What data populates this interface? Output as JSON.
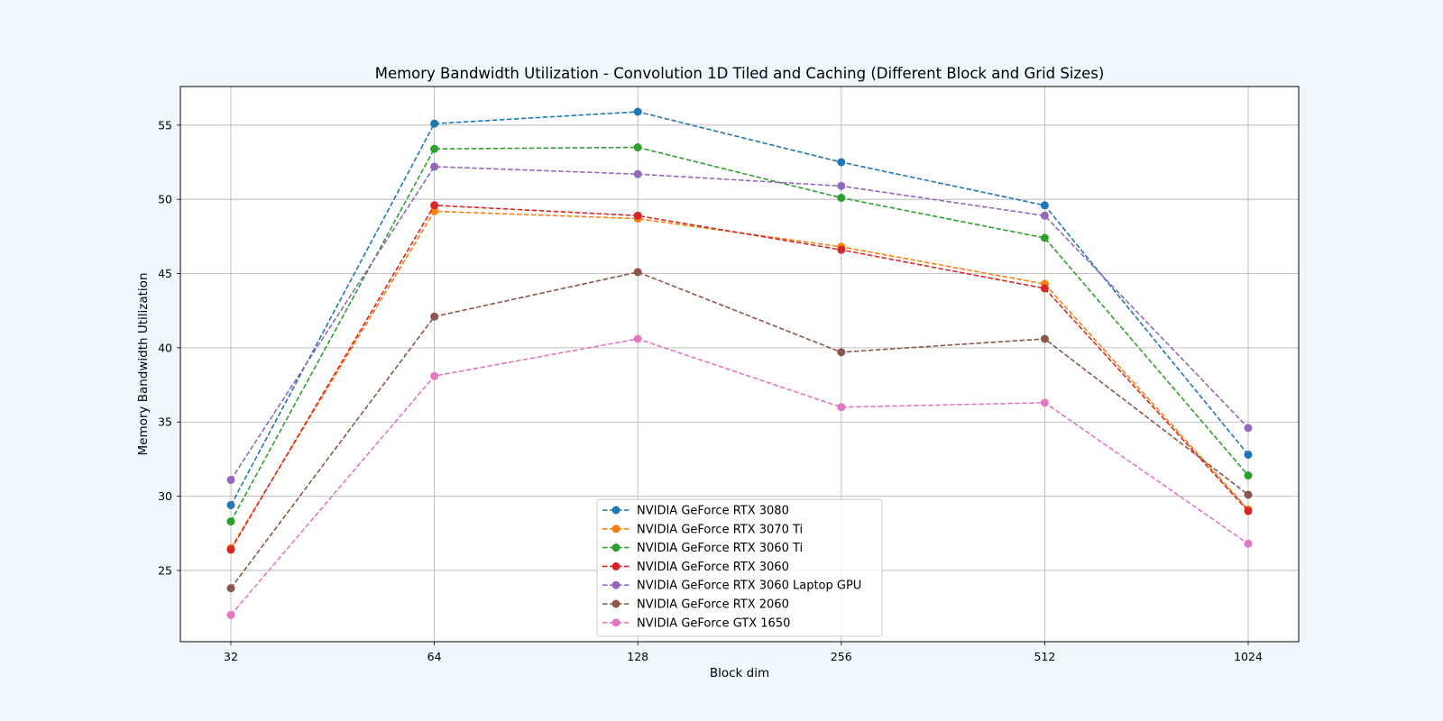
{
  "chart_data": {
    "type": "line",
    "title": "Memory Bandwidth Utilization - Convolution 1D Tiled and Caching (Different Block and Grid Sizes)",
    "xlabel": "Block dim",
    "ylabel": "Memory Bandwidth Utilization",
    "categories": [
      "32",
      "64",
      "128",
      "256",
      "512",
      "1024"
    ],
    "yticks": [
      "25",
      "30",
      "35",
      "40",
      "45",
      "50",
      "55"
    ],
    "ylim": [
      20.2,
      57.6
    ],
    "grid": true,
    "legend_position": "lower-center",
    "line_style": "dashed",
    "marker": "circle",
    "series": [
      {
        "name": "NVIDIA GeForce RTX 3080",
        "color": "#1f77b4",
        "values": [
          29.4,
          55.1,
          55.9,
          52.5,
          49.6,
          32.8
        ]
      },
      {
        "name": "NVIDIA GeForce RTX 3070 Ti",
        "color": "#ff7f0e",
        "values": [
          26.5,
          49.2,
          48.7,
          46.8,
          44.3,
          29.1
        ]
      },
      {
        "name": "NVIDIA GeForce RTX 3060 Ti",
        "color": "#2ca02c",
        "values": [
          28.3,
          53.4,
          53.5,
          50.1,
          47.4,
          31.4
        ]
      },
      {
        "name": "NVIDIA GeForce RTX 3060",
        "color": "#d62728",
        "values": [
          26.4,
          49.6,
          48.9,
          46.6,
          44.0,
          29.0
        ]
      },
      {
        "name": "NVIDIA GeForce RTX 3060 Laptop GPU",
        "color": "#9467bd",
        "values": [
          31.1,
          52.2,
          51.7,
          50.9,
          48.9,
          34.6
        ]
      },
      {
        "name": "NVIDIA GeForce RTX 2060",
        "color": "#8c564b",
        "values": [
          23.8,
          42.1,
          45.1,
          39.7,
          40.6,
          30.1
        ]
      },
      {
        "name": "NVIDIA GeForce GTX 1650",
        "color": "#e377c2",
        "values": [
          22.0,
          38.1,
          40.6,
          36.0,
          36.3,
          26.8
        ]
      }
    ]
  }
}
